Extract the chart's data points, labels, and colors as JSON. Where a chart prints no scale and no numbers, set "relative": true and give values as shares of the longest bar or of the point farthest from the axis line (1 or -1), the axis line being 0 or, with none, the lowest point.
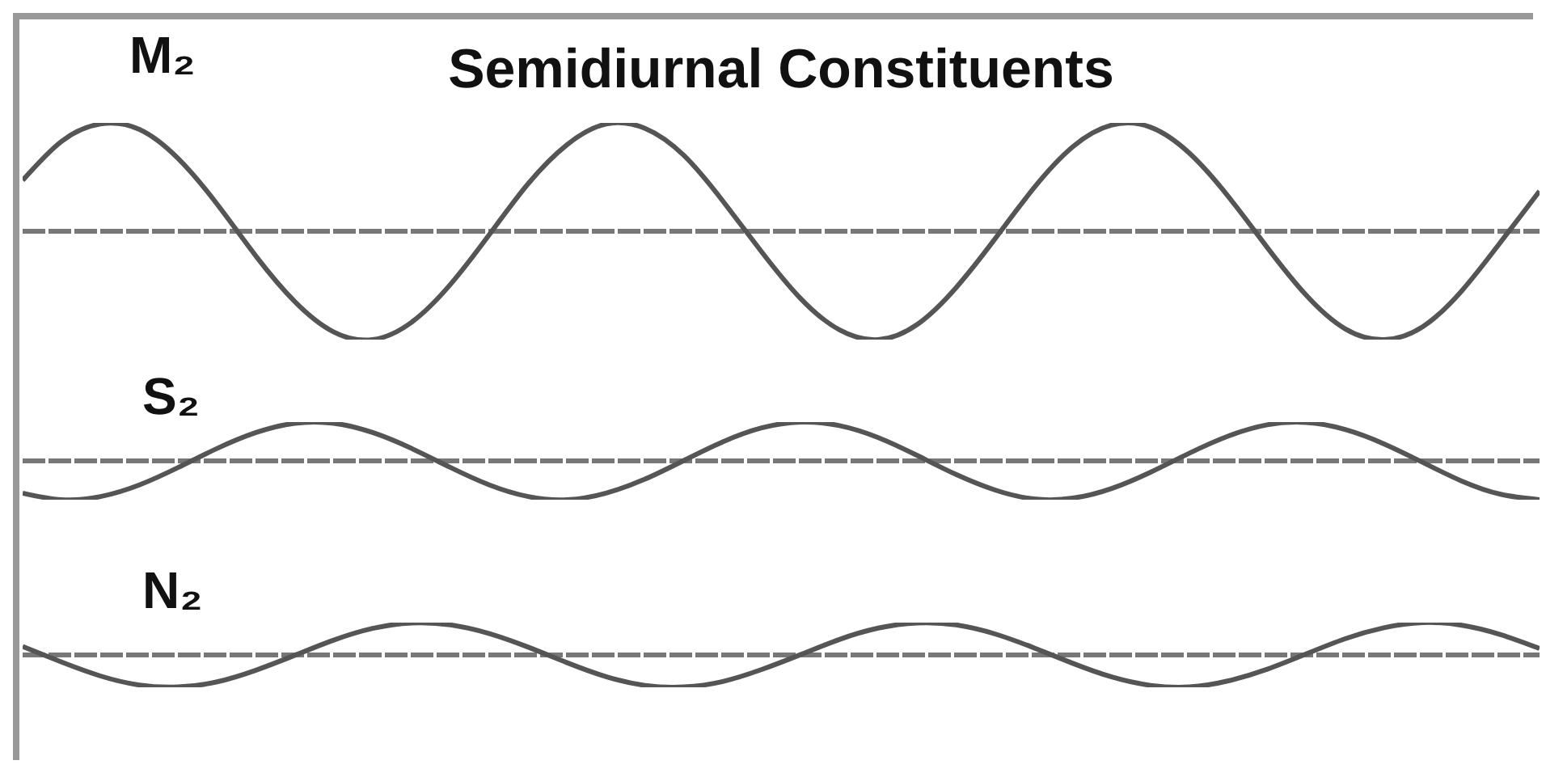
{
  "chart_data": [
    {
      "type": "line",
      "title": "Semidiurnal Constituents",
      "relative": true,
      "ref_lines": [
        {
          "axis": "y",
          "value": 0
        }
      ],
      "categories": [
        null,
        null,
        null,
        null,
        null,
        null,
        null,
        null,
        null,
        null,
        null,
        null,
        null,
        null,
        null,
        null,
        null,
        null,
        null,
        null,
        null,
        null,
        null,
        null,
        null,
        null,
        null,
        null,
        null,
        null,
        null,
        null,
        null,
        null,
        null,
        null,
        null,
        null,
        null,
        null
      ],
      "series": [
        {
          "name": "M₂",
          "color": "#555555",
          "values": [
            0.47,
            0.83,
            0.99,
            0.94,
            0.67,
            0.25,
            -0.23,
            -0.65,
            -0.93,
            -1.0,
            -0.84,
            -0.49,
            -0.03,
            0.44,
            0.8,
            0.99,
            0.95,
            0.7,
            0.28,
            -0.19,
            -0.62,
            -0.91,
            -1.0,
            -0.86,
            -0.52,
            -0.07,
            0.4,
            0.78,
            0.98,
            0.96,
            0.72,
            0.32,
            -0.15,
            -0.59,
            -0.9,
            -1.0,
            -0.88,
            -0.55,
            -0.1,
            0.37
          ]
        }
      ]
    },
    {
      "type": "line",
      "relative": true,
      "categories": [
        null,
        null,
        null,
        null,
        null,
        null,
        null,
        null,
        null,
        null,
        null,
        null,
        null,
        null,
        null,
        null,
        null,
        null,
        null,
        null,
        null,
        null,
        null,
        null,
        null,
        null,
        null,
        null,
        null,
        null,
        null,
        null,
        null,
        null,
        null,
        null,
        null,
        null,
        null,
        null
      ],
      "ref_lines": [
        {
          "axis": "y",
          "value": 0
        }
      ],
      "series": [
        {
          "name": "S₂",
          "color": "#555555",
          "values": [
            -0.83,
            -1.0,
            -0.92,
            -0.62,
            -0.17,
            0.32,
            0.73,
            0.97,
            0.97,
            0.73,
            0.32,
            -0.17,
            -0.62,
            -0.92,
            -1.0,
            -0.83,
            -0.47,
            0.01,
            0.49,
            0.85,
            1.0,
            0.91,
            0.6,
            0.14,
            -0.35,
            -0.75,
            -0.98,
            -0.96,
            -0.71,
            -0.29,
            0.2,
            0.64,
            0.93,
            0.99,
            0.81,
            0.44,
            -0.04,
            -0.52,
            -0.86,
            -1.0
          ]
        }
      ]
    },
    {
      "type": "line",
      "relative": true,
      "categories": [
        null,
        null,
        null,
        null,
        null,
        null,
        null,
        null,
        null,
        null,
        null,
        null,
        null,
        null,
        null,
        null,
        null,
        null,
        null,
        null,
        null,
        null,
        null,
        null,
        null,
        null,
        null,
        null,
        null,
        null,
        null,
        null,
        null,
        null,
        null,
        null,
        null,
        null,
        null,
        null
      ],
      "ref_lines": [
        {
          "axis": "y",
          "value": 0
        }
      ],
      "series": [
        {
          "name": "N₂",
          "color": "#555555",
          "values": [
            0.26,
            -0.22,
            -0.65,
            -0.93,
            -0.99,
            -0.83,
            -0.47,
            -0.01,
            0.46,
            0.82,
            0.99,
            0.93,
            0.66,
            0.24,
            -0.24,
            -0.67,
            -0.94,
            -0.99,
            -0.82,
            -0.45,
            0.01,
            0.48,
            0.83,
            0.99,
            0.93,
            0.65,
            0.22,
            -0.26,
            -0.68,
            -0.94,
            -0.99,
            -0.8,
            -0.44,
            0.03,
            0.5,
            0.84,
            1.0,
            0.92,
            0.63,
            0.2
          ]
        }
      ]
    }
  ]
}
